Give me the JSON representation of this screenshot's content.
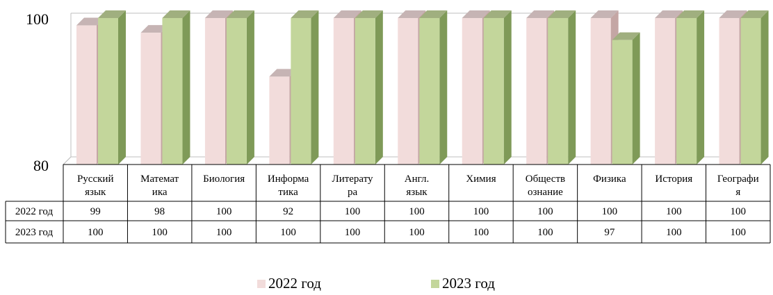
{
  "chart_data": {
    "type": "bar",
    "title": "",
    "xlabel": "",
    "ylabel": "",
    "ylim": [
      80,
      100
    ],
    "yticks": [
      80,
      100
    ],
    "categories": [
      [
        "Русский",
        "язык"
      ],
      [
        "Математ",
        "ика"
      ],
      [
        "Биология"
      ],
      [
        "Информа",
        "тика"
      ],
      [
        "Литерату",
        "ра"
      ],
      [
        "Англ.",
        "язык"
      ],
      [
        "Химия"
      ],
      [
        "Обществ",
        "ознание"
      ],
      [
        "Физика"
      ],
      [
        "История"
      ],
      [
        "Географи",
        "я"
      ]
    ],
    "series": [
      {
        "name": "2022 год",
        "color": "#f2dcdb",
        "side": "#c4a6a4",
        "values": [
          99,
          98,
          100,
          92,
          100,
          100,
          100,
          100,
          100,
          100,
          100
        ]
      },
      {
        "name": "2023 год",
        "color": "#c3d69b",
        "side": "#7f9a58",
        "values": [
          100,
          100,
          100,
          100,
          100,
          100,
          100,
          100,
          97,
          100,
          100
        ]
      }
    ],
    "data_table": true,
    "legend": "bottom",
    "grid": false,
    "style": "3d-clustered-column"
  }
}
